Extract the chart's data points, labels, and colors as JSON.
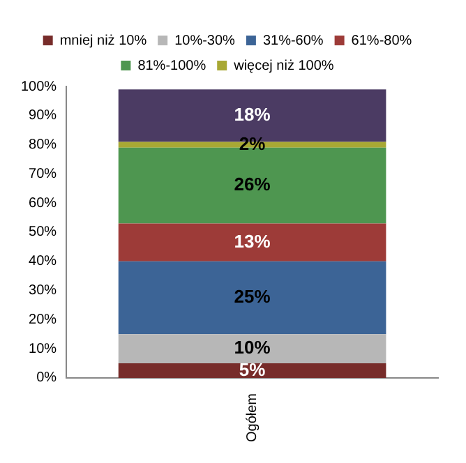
{
  "chart_data": {
    "type": "bar",
    "stacked": true,
    "categories": [
      "Ogółem"
    ],
    "series": [
      {
        "name": "mniej niż 10%",
        "color": "#772c2a",
        "values": [
          5
        ],
        "value_labels": [
          "5%"
        ]
      },
      {
        "name": "10%-30%",
        "color": "#b7b7b7",
        "values": [
          10
        ],
        "value_labels": [
          "10%"
        ]
      },
      {
        "name": "31%-60%",
        "color": "#3c6496",
        "values": [
          25
        ],
        "value_labels": [
          "25%"
        ]
      },
      {
        "name": "61%-80%",
        "color": "#9d3b38",
        "values": [
          13
        ],
        "value_labels": [
          "13%"
        ]
      },
      {
        "name": "81%-100%",
        "color": "#4e9650",
        "values": [
          26
        ],
        "value_labels": [
          "26%"
        ]
      },
      {
        "name": "więcej niż 100%",
        "color": "#a8a834",
        "values": [
          2
        ],
        "value_labels": [
          "2%"
        ]
      },
      {
        "color": "#4b3b63",
        "values": [
          18
        ],
        "value_labels": [
          "18%"
        ]
      }
    ],
    "ylim": [
      0,
      100
    ],
    "yticks": [
      {
        "value": 0,
        "label": "0%"
      },
      {
        "value": 10,
        "label": "10%"
      },
      {
        "value": 20,
        "label": "20%"
      },
      {
        "value": 30,
        "label": "30%"
      },
      {
        "value": 40,
        "label": "40%"
      },
      {
        "value": 50,
        "label": "50%"
      },
      {
        "value": 60,
        "label": "60%"
      },
      {
        "value": 70,
        "label": "70%"
      },
      {
        "value": 80,
        "label": "80%"
      },
      {
        "value": 90,
        "label": "90%"
      },
      {
        "value": 100,
        "label": "100%"
      }
    ],
    "grid": false,
    "legend": "top"
  }
}
